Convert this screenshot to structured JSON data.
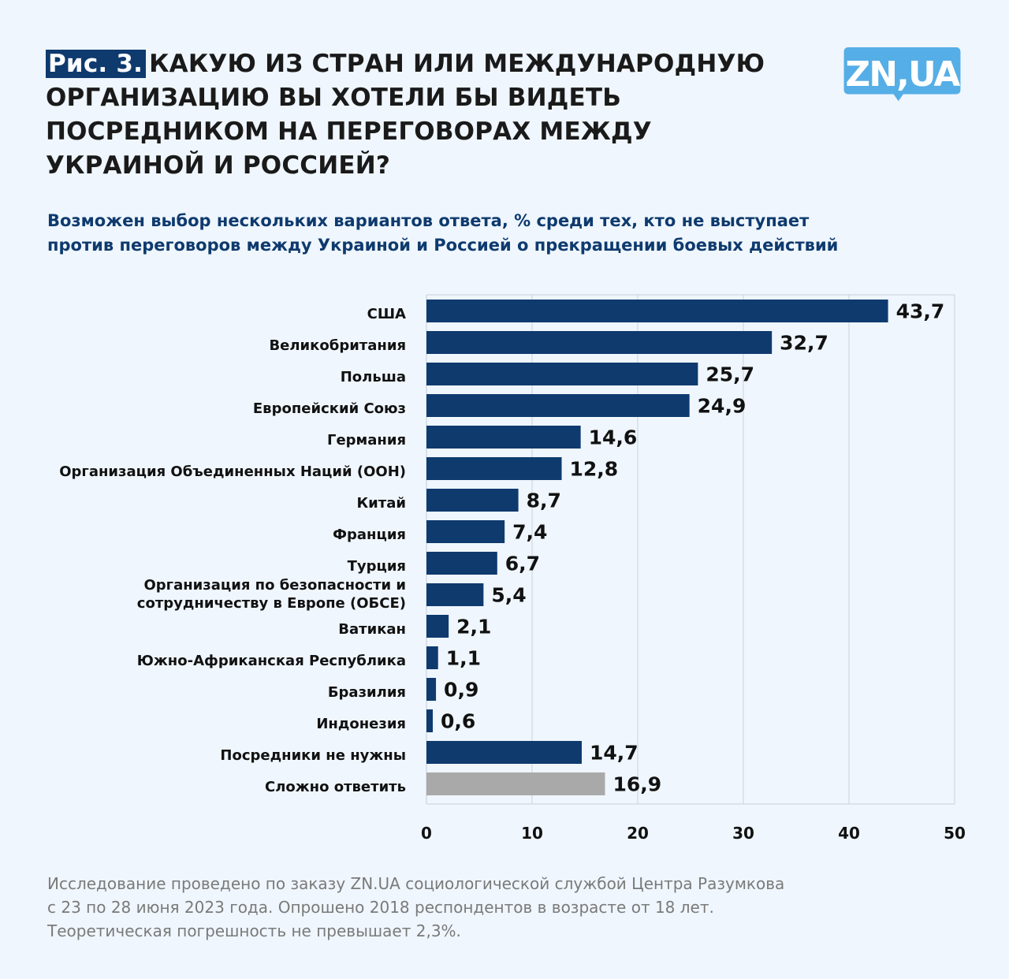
{
  "header": {
    "fig_label": "Рис. 3.",
    "title_lines": [
      "КАКУЮ ИЗ СТРАН ИЛИ МЕЖДУНАРОДНУЮ",
      "ОРГАНИЗАЦИЮ ВЫ ХОТЕЛИ БЫ ВИДЕТЬ",
      "ПОСРЕДНИКОМ НА ПЕРЕГОВОРАХ МЕЖДУ",
      "УКРАИНОЙ И РОССИЕЙ?"
    ],
    "logo_text": "ZN,UA",
    "subtitle_lines": [
      "Возможен выбор нескольких вариантов ответа, % среди тех, кто не выступает",
      "против переговоров между Украиной и Россией о прекращении боевых действий"
    ]
  },
  "chart_data": {
    "type": "bar",
    "orientation": "horizontal",
    "title": "КАКУЮ ИЗ СТРАН ИЛИ МЕЖДУНАРОДНУЮ ОРГАНИЗАЦИЮ ВЫ ХОТЕЛИ БЫ ВИДЕТЬ ПОСРЕДНИКОМ НА ПЕРЕГОВОРАХ МЕЖДУ УКРАИНОЙ И РОССИЕЙ?",
    "xlabel": "",
    "ylabel": "",
    "xlim": [
      0,
      50
    ],
    "xticks": [
      0,
      10,
      20,
      30,
      40,
      50
    ],
    "xtick_labels": [
      "0",
      "10",
      "20",
      "30",
      "40",
      "50"
    ],
    "grid": true,
    "categories": [
      [
        "США"
      ],
      [
        "Великобритания"
      ],
      [
        "Польша"
      ],
      [
        "Европейский Союз"
      ],
      [
        "Германия"
      ],
      [
        "Организация Объединенных Наций (ООН)"
      ],
      [
        "Китай"
      ],
      [
        "Франция"
      ],
      [
        "Турция"
      ],
      [
        "Организация по безопасности и",
        "сотрудничеству в Европе (ОБСЕ)"
      ],
      [
        "Ватикан"
      ],
      [
        "Южно-Африканская Республика"
      ],
      [
        "Бразилия"
      ],
      [
        "Индонезия"
      ],
      [
        "Посредники не нужны"
      ],
      [
        "Сложно ответить"
      ]
    ],
    "values": [
      43.7,
      32.7,
      25.7,
      24.9,
      14.6,
      12.8,
      8.7,
      7.4,
      6.7,
      5.4,
      2.1,
      1.1,
      0.9,
      0.6,
      14.7,
      16.9
    ],
    "value_labels": [
      "43,7",
      "32,7",
      "25,7",
      "24,9",
      "14,6",
      "12,8",
      "8,7",
      "7,4",
      "6,7",
      "5,4",
      "2,1",
      "1,1",
      "0,9",
      "0,6",
      "14,7",
      "16,9"
    ],
    "bar_colors": [
      "#0e3a6e",
      "#0e3a6e",
      "#0e3a6e",
      "#0e3a6e",
      "#0e3a6e",
      "#0e3a6e",
      "#0e3a6e",
      "#0e3a6e",
      "#0e3a6e",
      "#0e3a6e",
      "#0e3a6e",
      "#0e3a6e",
      "#0e3a6e",
      "#0e3a6e",
      "#0e3a6e",
      "#a9a9a9"
    ]
  },
  "footnote_lines": [
    "Исследование проведено по заказу ZN.UA социологической службой Центра Разумкова",
    "с 23 по 28 июня 2023 года. Опрошено 2018 респондентов в возрасте от 18 лет.",
    "Теоретическая погрешность не превышает 2,3%."
  ],
  "colors": {
    "background": "#eff6fd",
    "primary_bar": "#0e3a6e",
    "secondary_bar": "#a9a9a9",
    "logo": "#55aee6",
    "subtitle": "#0e3a6e"
  }
}
